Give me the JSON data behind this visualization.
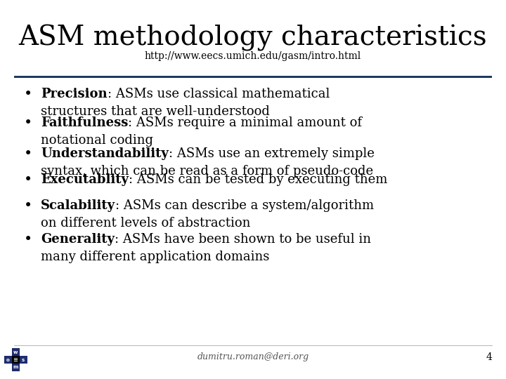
{
  "title": "ASM methodology characteristics",
  "subtitle": "http://www.eecs.umich.edu/gasm/intro.html",
  "background_color": "#ffffff",
  "title_color": "#000000",
  "subtitle_color": "#000000",
  "line_color": "#1f3864",
  "text_color": "#000000",
  "footer_text": "dumitru.roman@deri.org",
  "page_number": "4",
  "title_fontsize": 28,
  "subtitle_fontsize": 10,
  "bullet_fontsize": 13,
  "footer_fontsize": 9,
  "bullets": [
    {
      "bold": "Precision",
      "rest": ": ASMs use classical mathematical\nstructures that are well-understood"
    },
    {
      "bold": "Faithfulness",
      "rest": ": ASMs require a minimal amount of\nnotational coding"
    },
    {
      "bold": "Understandability",
      "rest": ": ASMs use an extremely simple\nsyntax, which can be read as a form of pseudo-code"
    },
    {
      "bold": "Executablity",
      "rest": ": ASMs can be tested by executing them"
    },
    {
      "bold": "Scalability",
      "rest": ": ASMs can describe a system/algorithm\non different levels of abstraction"
    },
    {
      "bold": "Generality",
      "rest": ": ASMs have been shown to be useful in\nmany different application domains"
    }
  ],
  "logo_colors": {
    "dark_blue": "#1f2d6e",
    "black": "#000000",
    "white": "#ffffff"
  }
}
